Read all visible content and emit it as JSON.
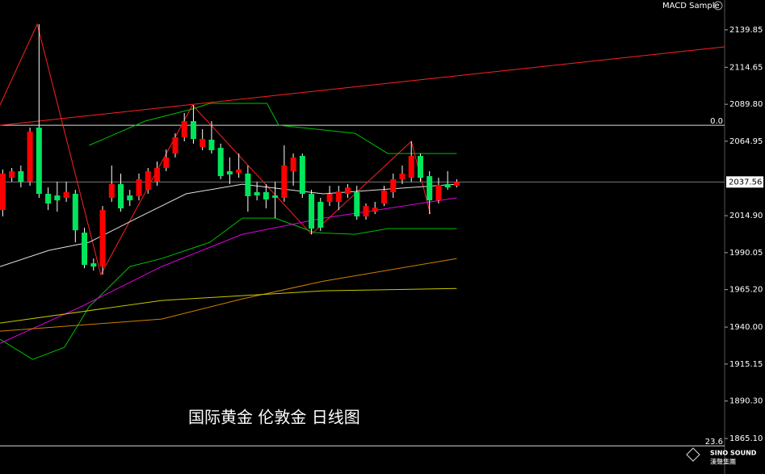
{
  "chart_data": {
    "type": "candlestick",
    "title": "国际黄金 伦敦金 日线图",
    "indicator": "MACD Sample",
    "up_color": "#ff0000",
    "down_color": "#00e65c",
    "wick_color": "#ffffff",
    "open": [
      2018.7,
      2040.4,
      2044.8,
      2037.7,
      2074.1,
      2029.6,
      2028.5,
      2026.9,
      2029.6,
      2003.5,
      1982.9,
      1980.7,
      2026.9,
      2036.1,
      2028.5,
      2028.0,
      2032.3,
      2037.7,
      2047.0,
      2056.7,
      2067.6,
      2078.5,
      2061.1,
      2066.0,
      2060.5,
      2044.8,
      2043.7,
      2043.2,
      2030.7,
      2030.7,
      2028.5,
      2026.9,
      2044.8,
      2055.1,
      2029.6,
      2024.2,
      2024.2,
      2024.2,
      2029.6,
      2030.7,
      2014.4,
      2017.6,
      2023.1,
      2030.7,
      2039.4,
      2040.4,
      2055.1,
      2041.5,
      2025.2,
      2036.1,
      2035.0
    ],
    "high": [
      2045.9,
      2047.0,
      2048.6,
      2074.1,
      2143.6,
      2033.9,
      2037.7,
      2037.7,
      2032.3,
      2006.8,
      1986.1,
      2021.4,
      2048.6,
      2043.2,
      2032.3,
      2043.2,
      2047.0,
      2051.3,
      2059.4,
      2070.3,
      2083.9,
      2089.3,
      2073.0,
      2078.5,
      2063.3,
      2054.0,
      2056.7,
      2048.6,
      2037.7,
      2036.1,
      2037.7,
      2062.2,
      2056.7,
      2056.7,
      2032.3,
      2026.9,
      2035.0,
      2035.0,
      2036.1,
      2035.0,
      2023.1,
      2024.2,
      2035.0,
      2043.2,
      2048.6,
      2064.9,
      2056.7,
      2044.8,
      2040.4,
      2044.8,
      2039.4
    ],
    "low": [
      2014.4,
      2037.7,
      2033.9,
      2035.0,
      2026.9,
      2018.7,
      2017.6,
      2024.2,
      1997.0,
      1979.6,
      1978.0,
      1975.3,
      2024.2,
      2017.6,
      2021.4,
      2025.2,
      2029.6,
      2035.0,
      2044.8,
      2054.0,
      2064.9,
      2063.3,
      2058.9,
      2056.7,
      2039.4,
      2036.1,
      2040.4,
      2017.6,
      2025.2,
      2019.8,
      2013.3,
      2024.2,
      2035.0,
      2026.9,
      2002.4,
      2004.6,
      2021.4,
      2018.7,
      2026.9,
      2012.2,
      2012.2,
      2016.0,
      2021.4,
      2026.9,
      2036.1,
      2037.7,
      2037.7,
      2016.0,
      2023.1,
      2032.3,
      2033.9
    ],
    "close": [
      2043.2,
      2044.8,
      2037.7,
      2071.4,
      2029.6,
      2023.1,
      2025.2,
      2030.7,
      2005.1,
      1981.8,
      1980.7,
      2018.7,
      2036.1,
      2019.8,
      2025.2,
      2039.4,
      2044.8,
      2047.0,
      2054.0,
      2067.6,
      2078.5,
      2066.5,
      2066.5,
      2058.9,
      2041.5,
      2042.6,
      2045.9,
      2028.0,
      2028.5,
      2025.8,
      2026.9,
      2048.6,
      2054.0,
      2029.6,
      2006.2,
      2006.8,
      2029.6,
      2031.2,
      2033.9,
      2014.4,
      2021.4,
      2020.3,
      2031.8,
      2039.4,
      2043.2,
      2055.1,
      2040.4,
      2025.2,
      2035.6,
      2033.9,
      2037.56
    ],
    "overlays": [
      {
        "color": "#ff2020",
        "x": [
          -0.3,
          79.5
        ],
        "values": [
          2075.7,
          2128.4
        ]
      },
      {
        "color": "#ff2020",
        "x": [
          -0.3,
          3.8,
          10.8,
          20.9,
          34,
          45,
          47.1
        ],
        "values": [
          2089.3,
          2143.6,
          1975.3,
          2089.3,
          2002.4,
          2064.9,
          2016.0
        ]
      },
      {
        "color": "#00c000",
        "x": [
          9.5,
          15.7,
          20.9,
          22.8,
          29.1,
          30.4,
          38.8,
          42.4,
          46,
          50
        ],
        "values": [
          2062.2,
          2078.5,
          2086.6,
          2090.4,
          2090.4,
          2075.7,
          2070.3,
          2056.7,
          2056.7,
          2056.7
        ]
      },
      {
        "color": "#00c000",
        "x": [
          -0.3,
          3.3,
          6.8,
          9.5,
          14.0,
          17.5,
          22.8,
          26.4,
          30.0,
          34.4,
          38.8,
          42.4,
          50
        ],
        "values": [
          1931.8,
          1918.3,
          1926.4,
          1953.6,
          1980.7,
          1986.1,
          1997.0,
          2013.3,
          2013.3,
          2003.5,
          2002.4,
          2006.2,
          2006.2
        ]
      },
      {
        "color": "#e000e0",
        "x": [
          -0.3,
          8.6,
          17.5,
          26.4,
          35.3,
          42.4,
          50
        ],
        "values": [
          1929.1,
          1953.6,
          1980.7,
          2002.4,
          2013.3,
          2019.8,
          2026.9
        ]
      },
      {
        "color": "#d08000",
        "x": [
          -0.3,
          17.5,
          26.4,
          35.3,
          50
        ],
        "values": [
          1937.3,
          1945.4,
          1959.0,
          1970.9,
          1986.1
        ]
      },
      {
        "color": "#c8c800",
        "x": [
          -0.3,
          17.5,
          35.3,
          50
        ],
        "values": [
          1942.7,
          1957.9,
          1964.4,
          1966.0
        ]
      },
      {
        "color": "#e0e0e0",
        "x": [
          -0.3,
          5.1,
          9.5,
          14.8,
          20.2,
          26.4,
          35.3,
          50
        ],
        "values": [
          1980.7,
          1991.6,
          1997.0,
          2013.3,
          2029.6,
          2036.1,
          2029.6,
          2036.1
        ]
      }
    ],
    "fib_levels": [
      {
        "level": "0.0",
        "price": 2075.7
      },
      {
        "level": "23.6",
        "price": 1860.2
      }
    ],
    "xlim": [
      -0.3,
      79.5
    ],
    "ylim": [
      1859.7,
      2159.9
    ],
    "yticks": [
      2139.85,
      2114.65,
      {
        "value": 2089.8,
        "label": "2089.80"
      },
      2064.95,
      {
        "value": 2014.9,
        "label": "2014.90"
      },
      1990.05,
      {
        "value": 1965.2,
        "label": "1965.20"
      },
      {
        "value": 1940,
        "label": "1940.00"
      },
      1915.15,
      {
        "value": 1890.3,
        "label": "1890.30"
      },
      {
        "value": 1865.1,
        "label": "1865.10"
      }
    ]
  },
  "logo": {
    "name": "SINO SOUND",
    "subtitle": "漢聲集團"
  }
}
